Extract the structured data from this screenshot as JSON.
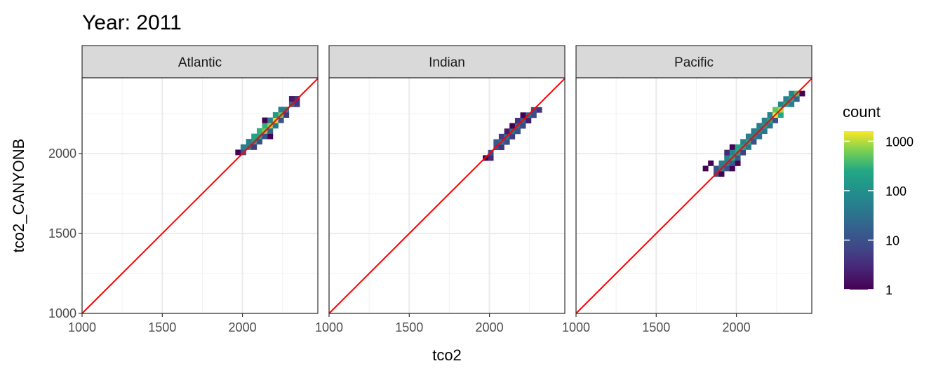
{
  "chart_data": {
    "type": "heatmap",
    "title": "Year: 2011",
    "xlabel": "tco2",
    "ylabel": "tco2_CANYONB",
    "xlim": [
      1000,
      2470
    ],
    "ylim": [
      1000,
      2474
    ],
    "x_ticks": [
      1000,
      1500,
      2000
    ],
    "y_ticks": [
      1000,
      1500,
      2000
    ],
    "grid": true,
    "binwidth": 33.5,
    "reference_line": {
      "type": "identity",
      "color": "#ff0000"
    },
    "legend": {
      "title": "count",
      "placement": "right",
      "scale": "log10",
      "range": [
        1,
        1600
      ],
      "ticks": [
        1,
        10,
        100,
        1000
      ],
      "tick_labels": [
        "1",
        "10",
        "100",
        "1000"
      ],
      "palette": "viridis"
    },
    "panels": [
      {
        "name": "Atlantic",
        "bins": [
          [
            1972,
            2008,
            1
          ],
          [
            2005,
            2008,
            10
          ],
          [
            2005,
            2041,
            50
          ],
          [
            2039,
            2041,
            50
          ],
          [
            2072,
            2041,
            5
          ],
          [
            2039,
            2075,
            50
          ],
          [
            2072,
            2075,
            150
          ],
          [
            2106,
            2075,
            10
          ],
          [
            2072,
            2108,
            200
          ],
          [
            2106,
            2108,
            200
          ],
          [
            2139,
            2108,
            10
          ],
          [
            2173,
            2108,
            1
          ],
          [
            2106,
            2142,
            300
          ],
          [
            2139,
            2142,
            600
          ],
          [
            2173,
            2142,
            20
          ],
          [
            2139,
            2175,
            300
          ],
          [
            2173,
            2175,
            800
          ],
          [
            2206,
            2175,
            40
          ],
          [
            2139,
            2209,
            1
          ],
          [
            2173,
            2209,
            50
          ],
          [
            2206,
            2209,
            1200
          ],
          [
            2240,
            2209,
            10
          ],
          [
            2206,
            2242,
            150
          ],
          [
            2240,
            2242,
            500
          ],
          [
            2273,
            2242,
            5
          ],
          [
            2240,
            2276,
            50
          ],
          [
            2273,
            2276,
            50
          ],
          [
            2307,
            2309,
            20
          ],
          [
            2340,
            2309,
            5
          ],
          [
            2307,
            2343,
            2
          ],
          [
            2340,
            2343,
            4
          ]
        ]
      },
      {
        "name": "Indian",
        "bins": [
          [
            1975,
            1973,
            1
          ],
          [
            2008,
            1973,
            3
          ],
          [
            2008,
            2006,
            8
          ],
          [
            2042,
            2040,
            10
          ],
          [
            2075,
            2040,
            4
          ],
          [
            2042,
            2073,
            15
          ],
          [
            2075,
            2073,
            30
          ],
          [
            2109,
            2073,
            8
          ],
          [
            2075,
            2107,
            5
          ],
          [
            2109,
            2107,
            30
          ],
          [
            2142,
            2107,
            5
          ],
          [
            2109,
            2140,
            2
          ],
          [
            2142,
            2140,
            30
          ],
          [
            2176,
            2140,
            10
          ],
          [
            2142,
            2174,
            1
          ],
          [
            2176,
            2174,
            25
          ],
          [
            2209,
            2174,
            8
          ],
          [
            2176,
            2207,
            4
          ],
          [
            2209,
            2207,
            20
          ],
          [
            2243,
            2207,
            2
          ],
          [
            2209,
            2241,
            1
          ],
          [
            2243,
            2241,
            25
          ],
          [
            2276,
            2241,
            8
          ],
          [
            2276,
            2274,
            10
          ],
          [
            2310,
            2274,
            4
          ]
        ]
      },
      {
        "name": "Pacific",
        "bins": [
          [
            1874,
            1873,
            8
          ],
          [
            1907,
            1873,
            1
          ],
          [
            1807,
            1907,
            1
          ],
          [
            1874,
            1907,
            10
          ],
          [
            1907,
            1907,
            50
          ],
          [
            1941,
            1907,
            10
          ],
          [
            1974,
            1907,
            1
          ],
          [
            1840,
            1940,
            1
          ],
          [
            1907,
            1940,
            50
          ],
          [
            1941,
            1940,
            40
          ],
          [
            1974,
            1940,
            15
          ],
          [
            2008,
            1940,
            1
          ],
          [
            1941,
            1974,
            60
          ],
          [
            1974,
            1974,
            200
          ],
          [
            2008,
            1974,
            15
          ],
          [
            1941,
            2007,
            3
          ],
          [
            1974,
            2007,
            60
          ],
          [
            2008,
            2007,
            200
          ],
          [
            2041,
            2007,
            6
          ],
          [
            1974,
            2041,
            1
          ],
          [
            2008,
            2041,
            200
          ],
          [
            2041,
            2041,
            200
          ],
          [
            2075,
            2041,
            40
          ],
          [
            2041,
            2074,
            60
          ],
          [
            2075,
            2074,
            200
          ],
          [
            2108,
            2074,
            10
          ],
          [
            2075,
            2108,
            50
          ],
          [
            2108,
            2108,
            60
          ],
          [
            2142,
            2108,
            30
          ],
          [
            2108,
            2141,
            50
          ],
          [
            2142,
            2141,
            60
          ],
          [
            2175,
            2141,
            40
          ],
          [
            2142,
            2175,
            50
          ],
          [
            2175,
            2175,
            120
          ],
          [
            2209,
            2175,
            40
          ],
          [
            2175,
            2208,
            60
          ],
          [
            2209,
            2208,
            200
          ],
          [
            2242,
            2208,
            10
          ],
          [
            2209,
            2242,
            60
          ],
          [
            2242,
            2242,
            1500
          ],
          [
            2276,
            2242,
            250
          ],
          [
            2242,
            2275,
            500
          ],
          [
            2276,
            2275,
            900
          ],
          [
            2276,
            2309,
            60
          ],
          [
            2309,
            2309,
            200
          ],
          [
            2343,
            2309,
            50
          ],
          [
            2309,
            2342,
            60
          ],
          [
            2343,
            2342,
            200
          ],
          [
            2376,
            2342,
            20
          ],
          [
            2343,
            2376,
            60
          ],
          [
            2376,
            2376,
            400
          ],
          [
            2410,
            2376,
            1
          ]
        ]
      }
    ]
  }
}
